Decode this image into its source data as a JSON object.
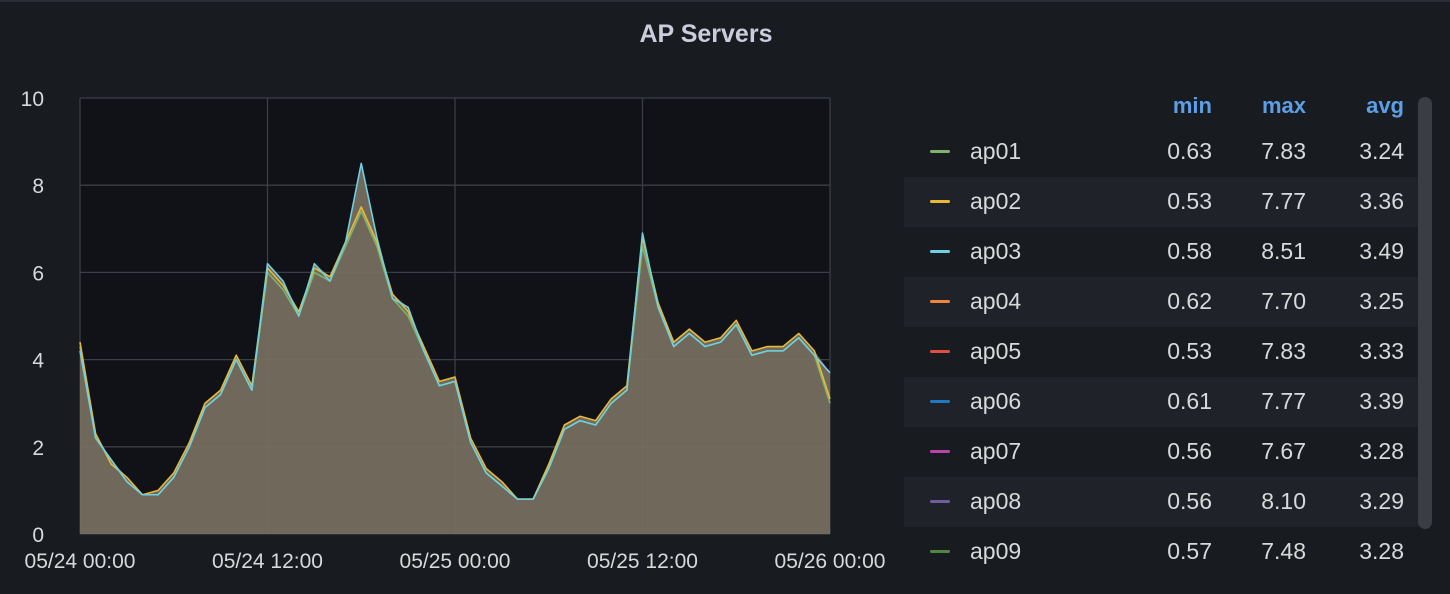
{
  "panel": {
    "title": "AP Servers"
  },
  "legend": {
    "headers": {
      "min": "min",
      "max": "max",
      "avg": "avg"
    },
    "rows": [
      {
        "name": "ap01",
        "color": "#7eb26d",
        "min": "0.63",
        "max": "7.83",
        "avg": "3.24"
      },
      {
        "name": "ap02",
        "color": "#eab839",
        "min": "0.53",
        "max": "7.77",
        "avg": "3.36"
      },
      {
        "name": "ap03",
        "color": "#6ed0e0",
        "min": "0.58",
        "max": "8.51",
        "avg": "3.49"
      },
      {
        "name": "ap04",
        "color": "#ef843c",
        "min": "0.62",
        "max": "7.70",
        "avg": "3.25"
      },
      {
        "name": "ap05",
        "color": "#e24d42",
        "min": "0.53",
        "max": "7.83",
        "avg": "3.33"
      },
      {
        "name": "ap06",
        "color": "#1f78c1",
        "min": "0.61",
        "max": "7.77",
        "avg": "3.39"
      },
      {
        "name": "ap07",
        "color": "#ba43a9",
        "min": "0.56",
        "max": "7.67",
        "avg": "3.28"
      },
      {
        "name": "ap08",
        "color": "#705da0",
        "min": "0.56",
        "max": "8.10",
        "avg": "3.29"
      },
      {
        "name": "ap09",
        "color": "#508642",
        "min": "0.57",
        "max": "7.48",
        "avg": "3.28"
      }
    ]
  },
  "chart_data": {
    "type": "area",
    "title": "AP Servers",
    "xlabel": "",
    "ylabel": "",
    "ylim": [
      0,
      10
    ],
    "yticks": [
      "0",
      "2",
      "4",
      "6",
      "8",
      "10"
    ],
    "xticks": [
      "05/24 00:00",
      "05/24 12:00",
      "05/25 00:00",
      "05/25 12:00",
      "05/26 00:00"
    ],
    "xlim": [
      "05/24 00:00",
      "05/26 00:00"
    ],
    "grid": true,
    "legend_position": "right",
    "fill_color": "#766e5e",
    "x_hours": [
      0,
      1,
      2,
      3,
      4,
      5,
      6,
      7,
      8,
      9,
      10,
      11,
      12,
      13,
      14,
      15,
      16,
      17,
      18,
      19,
      20,
      21,
      22,
      23,
      24,
      25,
      26,
      27,
      28,
      29,
      30,
      31,
      32,
      33,
      34,
      35,
      36,
      37,
      38,
      39,
      40,
      41,
      42,
      43,
      44,
      45,
      46,
      47,
      48
    ],
    "series": [
      {
        "name": "ap01",
        "values": [
          4.3,
          2.2,
          1.7,
          1.2,
          0.9,
          0.9,
          1.3,
          2.0,
          2.9,
          3.2,
          4.0,
          3.3,
          6.0,
          5.6,
          5.0,
          6.0,
          5.8,
          6.6,
          7.4,
          6.6,
          5.4,
          5.0,
          4.2,
          3.4,
          3.5,
          2.1,
          1.4,
          1.1,
          0.8,
          0.8,
          1.5,
          2.4,
          2.6,
          2.5,
          3.0,
          3.3,
          6.6,
          5.2,
          4.3,
          4.6,
          4.3,
          4.4,
          4.8,
          4.1,
          4.2,
          4.2,
          4.5,
          4.1,
          3.0
        ]
      },
      {
        "name": "ap02",
        "values": [
          4.4,
          2.3,
          1.6,
          1.3,
          0.9,
          1.0,
          1.4,
          2.1,
          3.0,
          3.3,
          4.1,
          3.4,
          6.1,
          5.7,
          5.1,
          6.1,
          5.9,
          6.7,
          7.5,
          6.7,
          5.5,
          5.1,
          4.3,
          3.5,
          3.6,
          2.2,
          1.5,
          1.2,
          0.8,
          0.8,
          1.6,
          2.5,
          2.7,
          2.6,
          3.1,
          3.4,
          6.8,
          5.3,
          4.4,
          4.7,
          4.4,
          4.5,
          4.9,
          4.2,
          4.3,
          4.3,
          4.6,
          4.2,
          3.1
        ]
      },
      {
        "name": "ap03",
        "values": [
          4.2,
          2.2,
          1.7,
          1.2,
          0.9,
          0.9,
          1.3,
          2.0,
          2.9,
          3.2,
          4.0,
          3.3,
          6.2,
          5.8,
          5.0,
          6.2,
          5.8,
          6.7,
          8.5,
          6.8,
          5.4,
          5.2,
          4.2,
          3.4,
          3.5,
          2.1,
          1.4,
          1.1,
          0.8,
          0.8,
          1.5,
          2.4,
          2.6,
          2.5,
          3.0,
          3.3,
          6.9,
          5.2,
          4.3,
          4.6,
          4.3,
          4.4,
          4.8,
          4.1,
          4.2,
          4.2,
          4.5,
          4.1,
          3.7
        ]
      }
    ]
  }
}
